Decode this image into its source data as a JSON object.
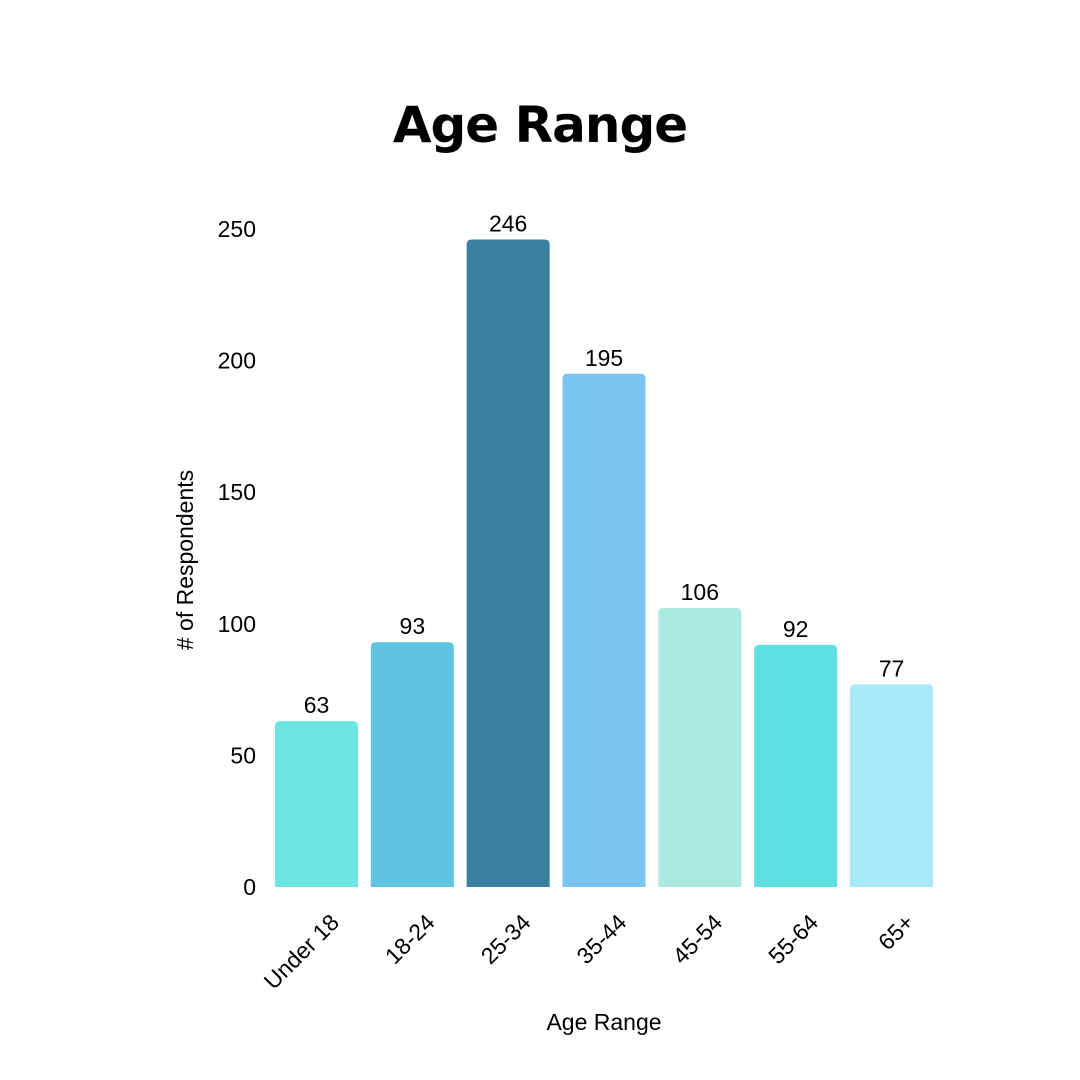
{
  "chart_data": {
    "type": "bar",
    "title": "Age Range",
    "xlabel": "Age Range",
    "ylabel": "# of Respondents",
    "categories": [
      "Under 18",
      "18-24",
      "25-34",
      "35-44",
      "45-54",
      "55-64",
      "65+"
    ],
    "values": [
      63,
      93,
      246,
      195,
      106,
      92,
      77
    ],
    "data_labels": [
      "63",
      "93",
      "246",
      "195",
      "106",
      "92",
      "77"
    ],
    "colors": [
      "#6DE5E3",
      "#5EC4E0",
      "#387FA0",
      "#79C4F0",
      "#AAEAE0",
      "#5EE0E3",
      "#A7E8F9"
    ],
    "ylim": [
      0,
      250
    ],
    "yticks": [
      0,
      50,
      100,
      150,
      200,
      250
    ],
    "ytick_labels": [
      "0",
      "50",
      "100",
      "150",
      "200",
      "250"
    ],
    "grid": false,
    "legend": "none"
  }
}
